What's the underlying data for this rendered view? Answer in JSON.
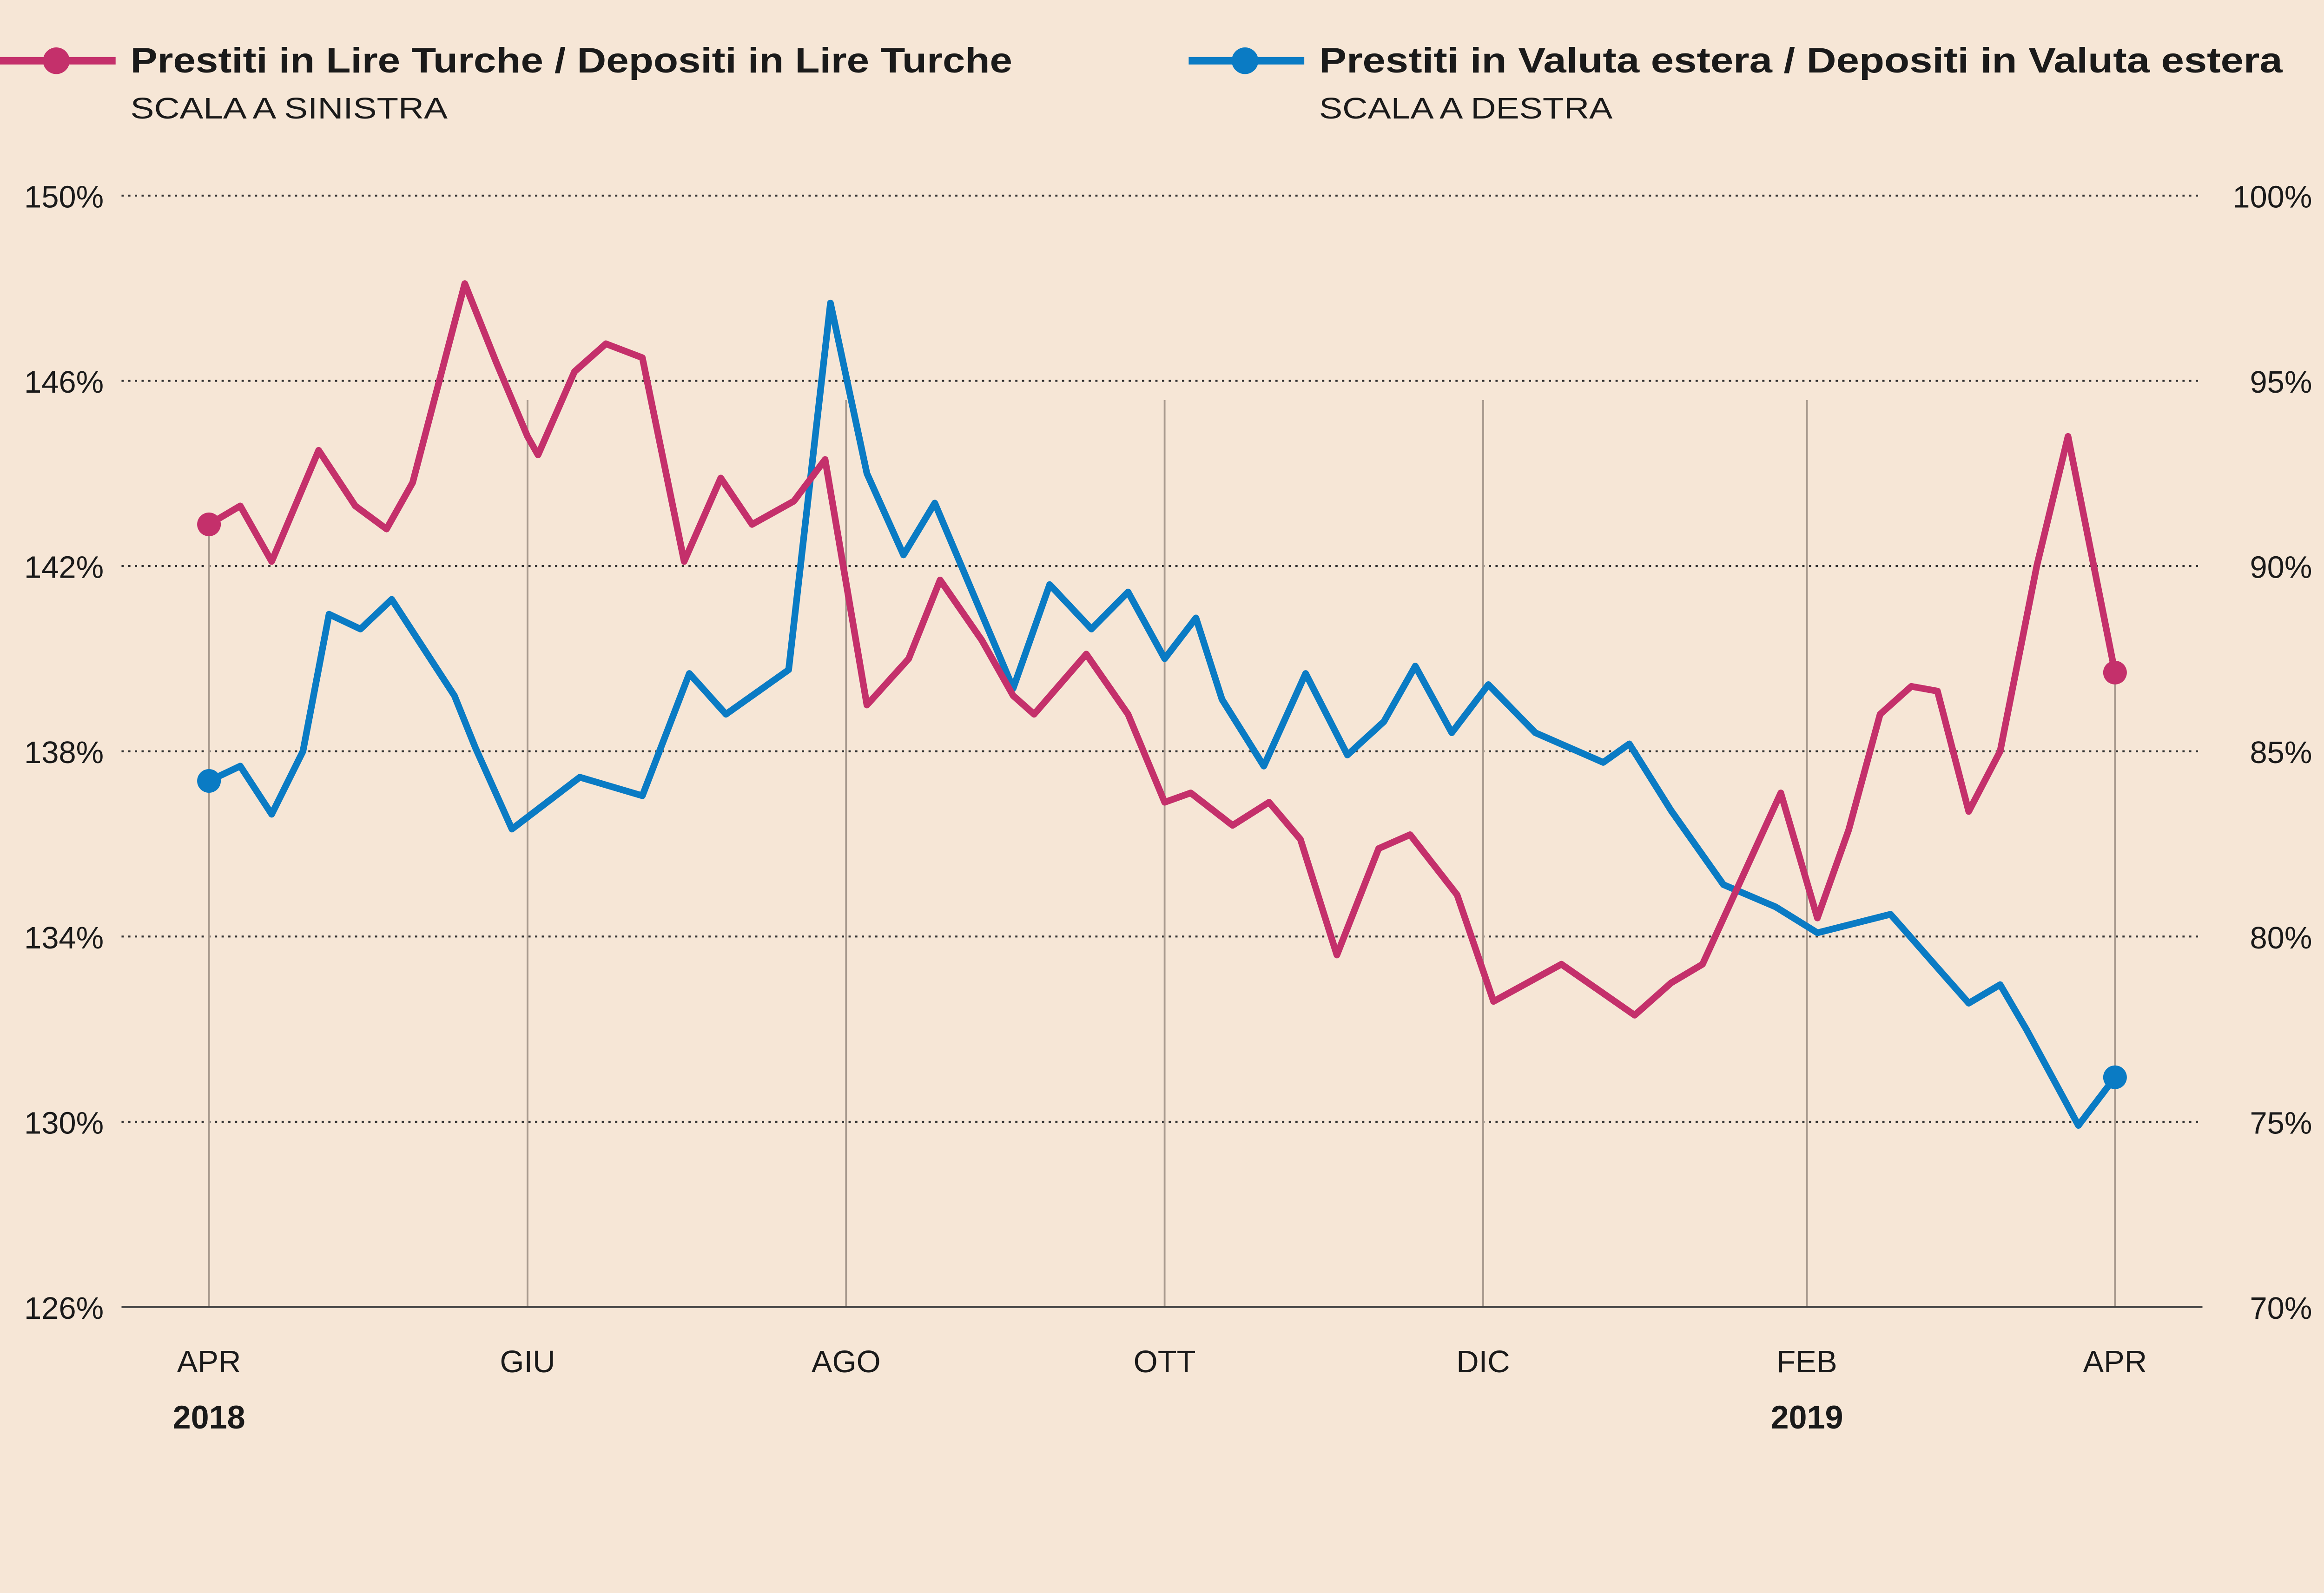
{
  "chart_data": {
    "type": "line",
    "title": "",
    "legend_placement": "top",
    "grid": "horizontal dotted",
    "x_range": [
      "2018-04-01",
      "2019-04-01"
    ],
    "x_ticks": [
      {
        "date": "2018-04-01",
        "label": "APR"
      },
      {
        "date": "2018-06-01",
        "label": "GIU"
      },
      {
        "date": "2018-08-01",
        "label": "AGO"
      },
      {
        "date": "2018-10-01",
        "label": "OTT"
      },
      {
        "date": "2018-12-01",
        "label": "DIC"
      },
      {
        "date": "2019-02-01",
        "label": "FEB"
      },
      {
        "date": "2019-04-01",
        "label": "APR"
      }
    ],
    "year_labels": [
      {
        "date": "2018-04-01",
        "label": "2018"
      },
      {
        "date": "2019-02-01",
        "label": "2019"
      }
    ],
    "y_left": {
      "range": [
        126,
        150
      ],
      "ticks": [
        126,
        130,
        134,
        138,
        142,
        146,
        150
      ],
      "unit": "%"
    },
    "y_right": {
      "range": [
        70,
        100
      ],
      "ticks": [
        70,
        75,
        80,
        85,
        90,
        95,
        100
      ],
      "unit": "%"
    },
    "series": [
      {
        "name": "Prestiti in Lire Turche / Depositi in Lire Turche",
        "subtitle": "SCALA A SINISTRA",
        "axis": "left",
        "color": "#c4306b",
        "x": [
          "2018-04-01",
          "2018-04-07",
          "2018-04-13",
          "2018-04-22",
          "2018-04-29",
          "2018-05-05",
          "2018-05-10",
          "2018-05-20",
          "2018-05-26",
          "2018-06-01",
          "2018-06-03",
          "2018-06-10",
          "2018-06-16",
          "2018-06-23",
          "2018-07-01",
          "2018-07-08",
          "2018-07-14",
          "2018-07-22",
          "2018-07-28",
          "2018-08-05",
          "2018-08-13",
          "2018-08-19",
          "2018-08-27",
          "2018-09-02",
          "2018-09-06",
          "2018-09-16",
          "2018-09-24",
          "2018-10-01",
          "2018-10-06",
          "2018-10-14",
          "2018-10-21",
          "2018-10-27",
          "2018-11-03",
          "2018-11-11",
          "2018-11-17",
          "2018-11-26",
          "2018-12-03",
          "2018-12-16",
          "2018-12-30",
          "2019-01-06",
          "2019-01-12",
          "2019-01-27",
          "2019-02-03",
          "2019-02-09",
          "2019-02-15",
          "2019-02-21",
          "2019-02-26",
          "2019-03-04",
          "2019-03-10",
          "2019-03-17",
          "2019-03-23",
          "2019-04-01"
        ],
        "values": [
          142.9,
          143.3,
          142.1,
          144.5,
          143.3,
          142.8,
          143.8,
          148.1,
          146.4,
          144.8,
          144.4,
          146.2,
          146.8,
          146.5,
          142.1,
          143.9,
          142.9,
          143.4,
          144.3,
          139.0,
          140.0,
          141.7,
          140.4,
          139.2,
          138.8,
          140.1,
          138.8,
          136.9,
          137.1,
          136.4,
          136.9,
          136.1,
          133.6,
          135.9,
          136.2,
          134.9,
          132.6,
          133.4,
          132.3,
          133.0,
          133.4,
          137.1,
          134.4,
          136.3,
          138.8,
          139.4,
          139.3,
          136.7,
          138.0,
          142.0,
          144.8,
          139.7
        ]
      },
      {
        "name": "Prestiti in Valuta estera / Depositi in Valuta estera",
        "subtitle": "SCALA A DESTRA",
        "axis": "right",
        "color": "#0a7bc4",
        "x": [
          "2018-04-01",
          "2018-04-07",
          "2018-04-13",
          "2018-04-19",
          "2018-04-24",
          "2018-04-30",
          "2018-05-06",
          "2018-05-18",
          "2018-05-22",
          "2018-05-29",
          "2018-06-11",
          "2018-06-23",
          "2018-07-02",
          "2018-07-09",
          "2018-07-21",
          "2018-07-29",
          "2018-08-05",
          "2018-08-12",
          "2018-08-18",
          "2018-09-02",
          "2018-09-09",
          "2018-09-17",
          "2018-09-24",
          "2018-10-01",
          "2018-10-07",
          "2018-10-12",
          "2018-10-20",
          "2018-10-28",
          "2018-11-05",
          "2018-11-12",
          "2018-11-18",
          "2018-11-25",
          "2018-12-02",
          "2018-12-11",
          "2018-12-24",
          "2018-12-29",
          "2019-01-06",
          "2019-01-16",
          "2019-01-26",
          "2019-02-03",
          "2019-02-17",
          "2019-03-04",
          "2019-03-10",
          "2019-03-15",
          "2019-03-25",
          "2019-04-01"
        ],
        "values": [
          84.2,
          84.6,
          83.3,
          85.0,
          88.7,
          88.3,
          89.1,
          86.5,
          85.1,
          82.9,
          84.3,
          83.8,
          87.1,
          86.0,
          87.2,
          97.1,
          92.5,
          90.3,
          91.7,
          86.7,
          89.5,
          88.3,
          89.3,
          87.5,
          88.6,
          86.4,
          84.6,
          87.1,
          84.9,
          85.8,
          87.3,
          85.5,
          86.8,
          85.5,
          84.7,
          85.2,
          83.4,
          81.4,
          80.8,
          80.1,
          80.6,
          78.2,
          78.7,
          77.5,
          74.9,
          76.2
        ]
      }
    ]
  }
}
